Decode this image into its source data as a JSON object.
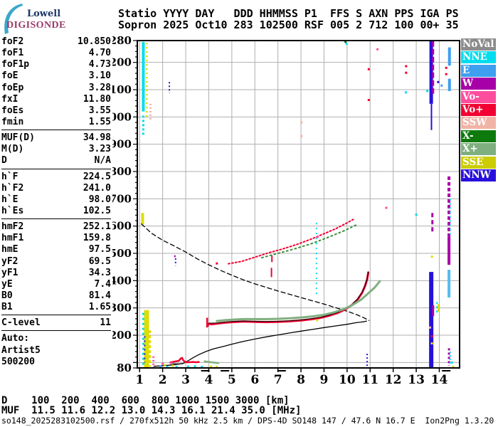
{
  "logo": {
    "line1": "Lowell",
    "line2": "DIGISONDE",
    "crescent_color": "#3AA8C9"
  },
  "header": {
    "line1": "Statio YYYY DAY   DDD HHMMSS P1  FFS S AXN PPS IGA PS",
    "line2": "Sopron 2025 Oct10 283 102500 RSF 005 2 712 100 00+ 35"
  },
  "params": {
    "groups": [
      {
        "rows": [
          [
            "foF2",
            "10.850"
          ],
          [
            "foF1",
            "4.70"
          ],
          [
            "foF1p",
            "4.73"
          ],
          [
            "foE",
            "3.10"
          ],
          [
            "foEp",
            "3.28"
          ],
          [
            "fxI",
            "11.80"
          ],
          [
            "foEs",
            "3.55"
          ],
          [
            "fmin",
            "1.55"
          ]
        ]
      },
      {
        "rows": [
          [
            "MUF(D)",
            "34.98"
          ],
          [
            "M(D)",
            "3.23"
          ],
          [
            "D",
            "N/A"
          ]
        ]
      },
      {
        "rows": [
          [
            "h`F",
            "224.5"
          ],
          [
            "h`F2",
            "241.0"
          ],
          [
            "h`E",
            "98.0"
          ],
          [
            "h`Es",
            "102.5"
          ]
        ]
      },
      {
        "rows": [
          [
            "hmF2",
            "252.1"
          ],
          [
            "hmF1",
            "159.8"
          ],
          [
            "hmE",
            "97.5"
          ],
          [
            "yF2",
            "69.5"
          ],
          [
            "yF1",
            "34.3"
          ],
          [
            "yE",
            "7.4"
          ],
          [
            "B0",
            "81.4"
          ],
          [
            "B1",
            "1.65"
          ]
        ]
      },
      {
        "rows": [
          [
            "C-level",
            "11"
          ]
        ]
      },
      {
        "rows": [
          [
            "Auto:",
            ""
          ],
          [
            "Artist5",
            ""
          ],
          [
            "500200",
            ""
          ]
        ],
        "nosep": true
      }
    ]
  },
  "legend": {
    "items": [
      {
        "label": "NoVal",
        "color": "#8C8C8C"
      },
      {
        "label": "NNE",
        "color": "#00DDEE"
      },
      {
        "label": "E",
        "color": "#3F9FEF"
      },
      {
        "label": "W",
        "color": "#A800A8"
      },
      {
        "label": "Vo-",
        "color": "#FF4D9E"
      },
      {
        "label": "Vo+",
        "color": "#F20031"
      },
      {
        "label": "SSW",
        "color": "#F2B3A7"
      },
      {
        "label": "X-",
        "color": "#0E7A0E"
      },
      {
        "label": "X+",
        "color": "#7FAF7F"
      },
      {
        "label": "SSE",
        "color": "#CCCC00"
      },
      {
        "label": "NNW",
        "color": "#2810DC"
      }
    ]
  },
  "footer": {
    "d_row": "D    100  200  400  600  800 1000 1500 3000 [km]",
    "muf_row": "MUF  11.5 11.6 12.2 13.0 14.3 16.1 21.4 35.0 [MHz]",
    "file_line": "so148_2025283102500.rsf / 270fx512h 50 kHz 2.5 km / DPS-4D SO148 147 / 47.6 N 16.7 E  Ion2Png 1.3.20"
  },
  "chart_data": {
    "type": "scatter",
    "x_unit": "MHz",
    "y_unit": "km",
    "xlim": [
      0.9,
      14.88
    ],
    "ylim": [
      80,
      1280
    ],
    "x_ticks": [
      1,
      2,
      3,
      4,
      5,
      6,
      7,
      8,
      9,
      10,
      11,
      12,
      13,
      14
    ],
    "y_gridlines": [
      100,
      200,
      300,
      400,
      500,
      600,
      700,
      800,
      900,
      1000,
      1100,
      1200
    ],
    "y_labeled_ticks": [
      1280,
      1200,
      1100,
      1000,
      900,
      800,
      700,
      600,
      500,
      400,
      300,
      200,
      80
    ],
    "y_minor_step": 20,
    "grid_color": "#AFAFAF",
    "axis_marks_f": [
      3.85,
      4.7,
      7.16,
      14.3
    ],
    "traces": [
      {
        "name": "muf-transmission-curve",
        "color": "#000000",
        "width": 1.3,
        "dash": "6,4",
        "points": [
          [
            1.08,
            608
          ],
          [
            1.5,
            575
          ],
          [
            2.0,
            548
          ],
          [
            2.5,
            527
          ],
          [
            3.0,
            505
          ],
          [
            3.5,
            480
          ],
          [
            4.0,
            458
          ],
          [
            4.5,
            438
          ],
          [
            5.0,
            420
          ],
          [
            5.5,
            403
          ],
          [
            6.0,
            388
          ],
          [
            6.5,
            375
          ],
          [
            7.0,
            362
          ],
          [
            7.5,
            350
          ],
          [
            8.0,
            338
          ],
          [
            8.5,
            326
          ],
          [
            9.0,
            314
          ],
          [
            9.5,
            301
          ],
          [
            10.0,
            288
          ],
          [
            10.4,
            276
          ],
          [
            10.7,
            265
          ],
          [
            10.95,
            254
          ]
        ]
      },
      {
        "name": "true-height-profile",
        "color": "#000000",
        "width": 1.3,
        "dash": null,
        "points": [
          [
            1.62,
            86
          ],
          [
            2.0,
            88
          ],
          [
            2.4,
            91
          ],
          [
            2.7,
            94
          ],
          [
            2.9,
            97
          ],
          [
            3.1,
            106
          ],
          [
            3.35,
            119
          ],
          [
            3.6,
            130
          ],
          [
            3.9,
            141
          ],
          [
            4.2,
            150
          ],
          [
            4.5,
            156
          ],
          [
            4.7,
            160
          ],
          [
            5.0,
            167
          ],
          [
            5.5,
            177
          ],
          [
            6.0,
            186
          ],
          [
            6.5,
            194
          ],
          [
            7.0,
            201
          ],
          [
            7.5,
            208
          ],
          [
            8.0,
            215
          ],
          [
            8.5,
            221
          ],
          [
            9.0,
            228
          ],
          [
            9.5,
            234
          ],
          [
            10.0,
            240
          ],
          [
            10.4,
            246
          ],
          [
            10.7,
            249
          ],
          [
            10.85,
            252
          ]
        ]
      },
      {
        "name": "f-trace-o",
        "color": "#F20031",
        "width": 3,
        "dash": null,
        "points": [
          [
            3.93,
            232
          ],
          [
            4.0,
            242
          ],
          [
            4.15,
            240
          ],
          [
            4.4,
            243
          ],
          [
            4.7,
            246
          ],
          [
            5.0,
            248
          ],
          [
            5.5,
            250
          ],
          [
            6.0,
            249
          ],
          [
            6.5,
            248
          ],
          [
            7.0,
            249
          ],
          [
            7.5,
            251
          ],
          [
            8.0,
            254
          ],
          [
            8.4,
            258
          ],
          [
            8.8,
            263
          ],
          [
            9.2,
            271
          ],
          [
            9.6,
            282
          ],
          [
            9.9,
            294
          ],
          [
            10.2,
            310
          ],
          [
            10.45,
            330
          ],
          [
            10.65,
            355
          ],
          [
            10.78,
            380
          ],
          [
            10.87,
            405
          ],
          [
            10.92,
            430
          ]
        ]
      },
      {
        "name": "f-trace-fit",
        "color": "#000000",
        "width": 1,
        "dash": null,
        "points": [
          [
            4.0,
            244
          ],
          [
            4.4,
            245
          ],
          [
            4.7,
            248
          ],
          [
            5.0,
            250
          ],
          [
            5.5,
            252
          ],
          [
            6.0,
            251
          ],
          [
            6.5,
            250
          ],
          [
            7.0,
            251
          ],
          [
            7.5,
            253
          ],
          [
            8.0,
            256
          ],
          [
            8.4,
            260
          ],
          [
            8.8,
            265
          ],
          [
            9.2,
            273
          ],
          [
            9.6,
            284
          ],
          [
            9.9,
            296
          ],
          [
            10.2,
            312
          ],
          [
            10.45,
            332
          ],
          [
            10.65,
            357
          ],
          [
            10.78,
            382
          ],
          [
            10.87,
            407
          ],
          [
            10.92,
            432
          ]
        ]
      },
      {
        "name": "f-trace-x",
        "color": "#7FAF7F",
        "width": 3,
        "dash": null,
        "points": [
          [
            4.35,
            252
          ],
          [
            4.7,
            255
          ],
          [
            5.0,
            257
          ],
          [
            5.5,
            259
          ],
          [
            6.0,
            259
          ],
          [
            6.5,
            259
          ],
          [
            7.0,
            260
          ],
          [
            7.5,
            262
          ],
          [
            8.0,
            265
          ],
          [
            8.5,
            269
          ],
          [
            9.0,
            275
          ],
          [
            9.4,
            283
          ],
          [
            9.8,
            294
          ],
          [
            10.2,
            309
          ],
          [
            10.6,
            330
          ],
          [
            10.9,
            352
          ],
          [
            11.2,
            375
          ],
          [
            11.42,
            398
          ]
        ]
      },
      {
        "name": "e-trace-o",
        "color": "#F20031",
        "width": 2.5,
        "dash": null,
        "points": [
          [
            2.33,
            100
          ],
          [
            2.5,
            103
          ],
          [
            2.7,
            106
          ],
          [
            2.78,
            114
          ],
          [
            2.84,
            117
          ],
          [
            2.9,
            107
          ],
          [
            3.0,
            101
          ],
          [
            3.15,
            101
          ],
          [
            3.3,
            102
          ],
          [
            3.45,
            101
          ],
          [
            3.57,
            102
          ]
        ]
      },
      {
        "name": "es-trace-x",
        "color": "#7FAF7F",
        "width": 2.5,
        "dash": null,
        "points": [
          [
            3.82,
            104
          ],
          [
            4.1,
            101
          ],
          [
            4.42,
            98
          ]
        ]
      },
      {
        "name": "e-base-line",
        "color": "#000000",
        "width": 1,
        "dash": null,
        "points": [
          [
            2.33,
            96
          ],
          [
            2.6,
            95
          ],
          [
            2.85,
            95
          ]
        ]
      },
      {
        "name": "hop2-trace-o",
        "color": "#F20031",
        "width": 2,
        "dash": "2,3",
        "points": [
          [
            4.85,
            462
          ],
          [
            5.4,
            470
          ],
          [
            6.0,
            486
          ],
          [
            6.6,
            502
          ],
          [
            7.2,
            516
          ],
          [
            7.8,
            532
          ],
          [
            8.4,
            551
          ],
          [
            9.0,
            572
          ],
          [
            9.5,
            590
          ],
          [
            10.0,
            612
          ],
          [
            10.3,
            626
          ]
        ]
      },
      {
        "name": "hop2-trace-x",
        "color": "#3C8C3C",
        "width": 2,
        "dash": "2,4",
        "points": [
          [
            6.3,
            484
          ],
          [
            7.0,
            500
          ],
          [
            7.7,
            516
          ],
          [
            8.4,
            534
          ],
          [
            9.1,
            556
          ],
          [
            9.8,
            580
          ],
          [
            10.4,
            604
          ]
        ]
      }
    ],
    "marks": [
      [
        1.16,
        1020,
        1275,
        "#00DDEE",
        4,
        null
      ],
      [
        1.16,
        930,
        1005,
        "#00DDEE",
        3,
        "3,3"
      ],
      [
        1.31,
        1000,
        1272,
        "#DDDD00",
        3,
        "2,4"
      ],
      [
        1.47,
        985,
        1048,
        "#F2B3A7",
        3,
        "2,3"
      ],
      [
        2.29,
        1088,
        1128,
        "#2810DC",
        2,
        "2,3"
      ],
      [
        1.13,
        606,
        648,
        "#DDDD00",
        4,
        null
      ],
      [
        1.3,
        82,
        292,
        "#DDDD00",
        7,
        null
      ],
      [
        1.43,
        85,
        218,
        "#DDDD00",
        4,
        "4,3"
      ],
      [
        1.16,
        88,
        282,
        "#00DDEE",
        3,
        "3,4"
      ],
      [
        1.22,
        100,
        196,
        "#2810DC",
        2,
        "2,4"
      ],
      [
        1.6,
        82,
        122,
        "#FF4D9E",
        3,
        "2,3"
      ],
      [
        2.56,
        455,
        482,
        "#2810DC",
        2,
        "2,3"
      ],
      [
        2.53,
        486,
        493,
        "#A800A8",
        2,
        null
      ],
      [
        8.67,
        338,
        612,
        "#00DDEE",
        2,
        "2,5"
      ],
      [
        6.72,
        413,
        447,
        "#F20031",
        2,
        null
      ],
      [
        6.74,
        468,
        492,
        "#F20031",
        2,
        null
      ],
      [
        3.93,
        230,
        264,
        "#F20031",
        2.5,
        null
      ],
      [
        10.87,
        80,
        132,
        "#2810DC",
        2,
        "2,3"
      ],
      [
        13.65,
        1048,
        1280,
        "#2810DC",
        5,
        null
      ],
      [
        13.73,
        1085,
        1278,
        "#A800A8",
        3,
        "8,3"
      ],
      [
        13.66,
        952,
        1048,
        "#2810DC",
        2,
        null
      ],
      [
        13.7,
        572,
        648,
        "#A800A8",
        3,
        "6,4"
      ],
      [
        13.65,
        82,
        432,
        "#2810DC",
        6,
        null
      ],
      [
        13.73,
        270,
        310,
        "#A800A8",
        3,
        null
      ],
      [
        13.9,
        278,
        322,
        "#00DDEE",
        2,
        "3,3"
      ],
      [
        13.96,
        286,
        314,
        "#DDDD00",
        2,
        null
      ],
      [
        14.44,
        1188,
        1255,
        "#3F9FEF",
        4,
        null
      ],
      [
        14.44,
        1095,
        1140,
        "#3F9FEF",
        4,
        null
      ],
      [
        14.42,
        548,
        782,
        "#A800A8",
        4,
        "5,3"
      ],
      [
        14.47,
        560,
        700,
        "#00DDEE",
        2,
        "2,4"
      ],
      [
        14.42,
        458,
        560,
        "#A800A8",
        4,
        null
      ],
      [
        14.42,
        338,
        440,
        "#55BBEE",
        4,
        null
      ],
      [
        14.42,
        88,
        152,
        "#A800A8",
        3,
        "3,3"
      ],
      [
        14.47,
        95,
        140,
        "#00DDEE",
        2,
        "2,3"
      ]
    ],
    "specks": [
      [
        9.93,
        1275,
        "#0E7A0E"
      ],
      [
        9.98,
        1268,
        "#00DDEE"
      ],
      [
        11.32,
        1248,
        "#FF4D9E"
      ],
      [
        10.94,
        1175,
        "#F20031"
      ],
      [
        12.56,
        1186,
        "#F20031"
      ],
      [
        12.56,
        1162,
        "#F20031"
      ],
      [
        14.3,
        1180,
        "#F20031"
      ],
      [
        14.3,
        1157,
        "#F20031"
      ],
      [
        10.94,
        1062,
        "#F20031"
      ],
      [
        12.55,
        1090,
        "#00DDEE"
      ],
      [
        13.48,
        1095,
        "#00DDEE"
      ],
      [
        13.95,
        1128,
        "#2810DC"
      ],
      [
        14.1,
        1115,
        "#3F9FEF"
      ],
      [
        8.02,
        980,
        "#F2B3A7"
      ],
      [
        8.02,
        930,
        "#F2B3A7"
      ],
      [
        11.7,
        667,
        "#FF4D9E"
      ],
      [
        13.0,
        642,
        "#00DDEE"
      ],
      [
        8.72,
        560,
        "#FF4D9E"
      ],
      [
        8.7,
        255,
        "#DDDD00"
      ],
      [
        13.68,
        488,
        "#DDDD00"
      ],
      [
        13.68,
        170,
        "#DDDD00"
      ],
      [
        13.68,
        196,
        "#F20031"
      ],
      [
        13.6,
        228,
        "#F2B3A7"
      ],
      [
        4.35,
        463,
        "#F20031"
      ],
      [
        2.36,
        98,
        "#FF4D9E"
      ],
      [
        2.0,
        95,
        "#FF4D9E"
      ],
      [
        2.2,
        84,
        "#00DDEE"
      ],
      [
        2.6,
        84,
        "#00DDEE"
      ],
      [
        3.1,
        85,
        "#00DDEE"
      ],
      [
        3.4,
        86,
        "#00DDEE"
      ],
      [
        3.7,
        84,
        "#00DDEE"
      ],
      [
        4.1,
        85,
        "#DDDD00"
      ],
      [
        4.35,
        84,
        "#DDDD00"
      ],
      [
        2.1,
        90,
        "#DDDD00"
      ],
      [
        2.45,
        88,
        "#DDDD00"
      ],
      [
        1.9,
        86,
        "#3F9FEF"
      ],
      [
        14.6,
        84,
        "#DDDD00"
      ],
      [
        14.55,
        100,
        "#00DDEE"
      ]
    ]
  }
}
